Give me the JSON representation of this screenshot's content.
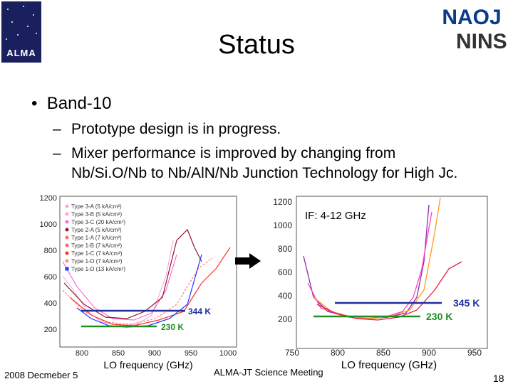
{
  "slide": {
    "title": "Status",
    "bullet": "Band-10",
    "subbullets": [
      "Prototype design is in progress.",
      "Mixer performance is improved by changing from",
      "Nb/Si.O/Nb to Nb/AlN/Nb Junction Technology for High Jc."
    ],
    "dash": "–",
    "bullet_mark": "•"
  },
  "logos": {
    "alma": "ALMA",
    "naoj": "NAOJ",
    "nins": "NINS"
  },
  "footer": {
    "date": "2008 Decmeber 5",
    "meeting": "ALMA-JT Science Meeting",
    "page": "18"
  },
  "left_chart": {
    "y_ticks": [
      "1200",
      "1000",
      "800",
      "600",
      "400",
      "200"
    ],
    "x_ticks": [
      "800",
      "850",
      "900",
      "950",
      "1000"
    ],
    "xlabel": "LO frequency (GHz)",
    "legend": [
      {
        "label": "Type 3-A (5 kA/cm²)",
        "color": "#ff9de0"
      },
      {
        "label": "Type 3-B (5 kA/cm²)",
        "color": "#ff9de0"
      },
      {
        "label": "Type 3-C (20 kA/cm²)",
        "color": "#ff6ad5"
      },
      {
        "label": "Type 2-A (5 kA/cm²)",
        "color": "#8b1a2b"
      },
      {
        "label": "Type 1-A (7 kA/cm²)",
        "color": "#ff6a6a"
      },
      {
        "label": "Type 1-B (7 kA/cm²)",
        "color": "#ff6a6a"
      },
      {
        "label": "Type 1-C (7 kA/cm²)",
        "color": "#ff3030"
      },
      {
        "label": "Type 1-D (7 kA/cm²)",
        "color": "#ff9090"
      },
      {
        "label": "Type 1-D (13 kA/cm²)",
        "color": "#1a3aff"
      }
    ],
    "blue_line_label": "344 K",
    "green_line_label": "230 K"
  },
  "right_chart": {
    "y_ticks": [
      "1200",
      "1000",
      "800",
      "600",
      "400",
      "200"
    ],
    "x_ticks": [
      "750",
      "800",
      "850",
      "900",
      "950"
    ],
    "xlabel": "LO frequency (GHz)",
    "annotation": "IF: 4-12 GHz",
    "blue_line_label": "345 K",
    "green_line_label": "230 K"
  },
  "colors": {
    "blue_line": "#1f2f9f",
    "green_line": "#1f8f1f",
    "alma_bg": "#1a1f5e",
    "naoj": "#0a3a8a"
  }
}
